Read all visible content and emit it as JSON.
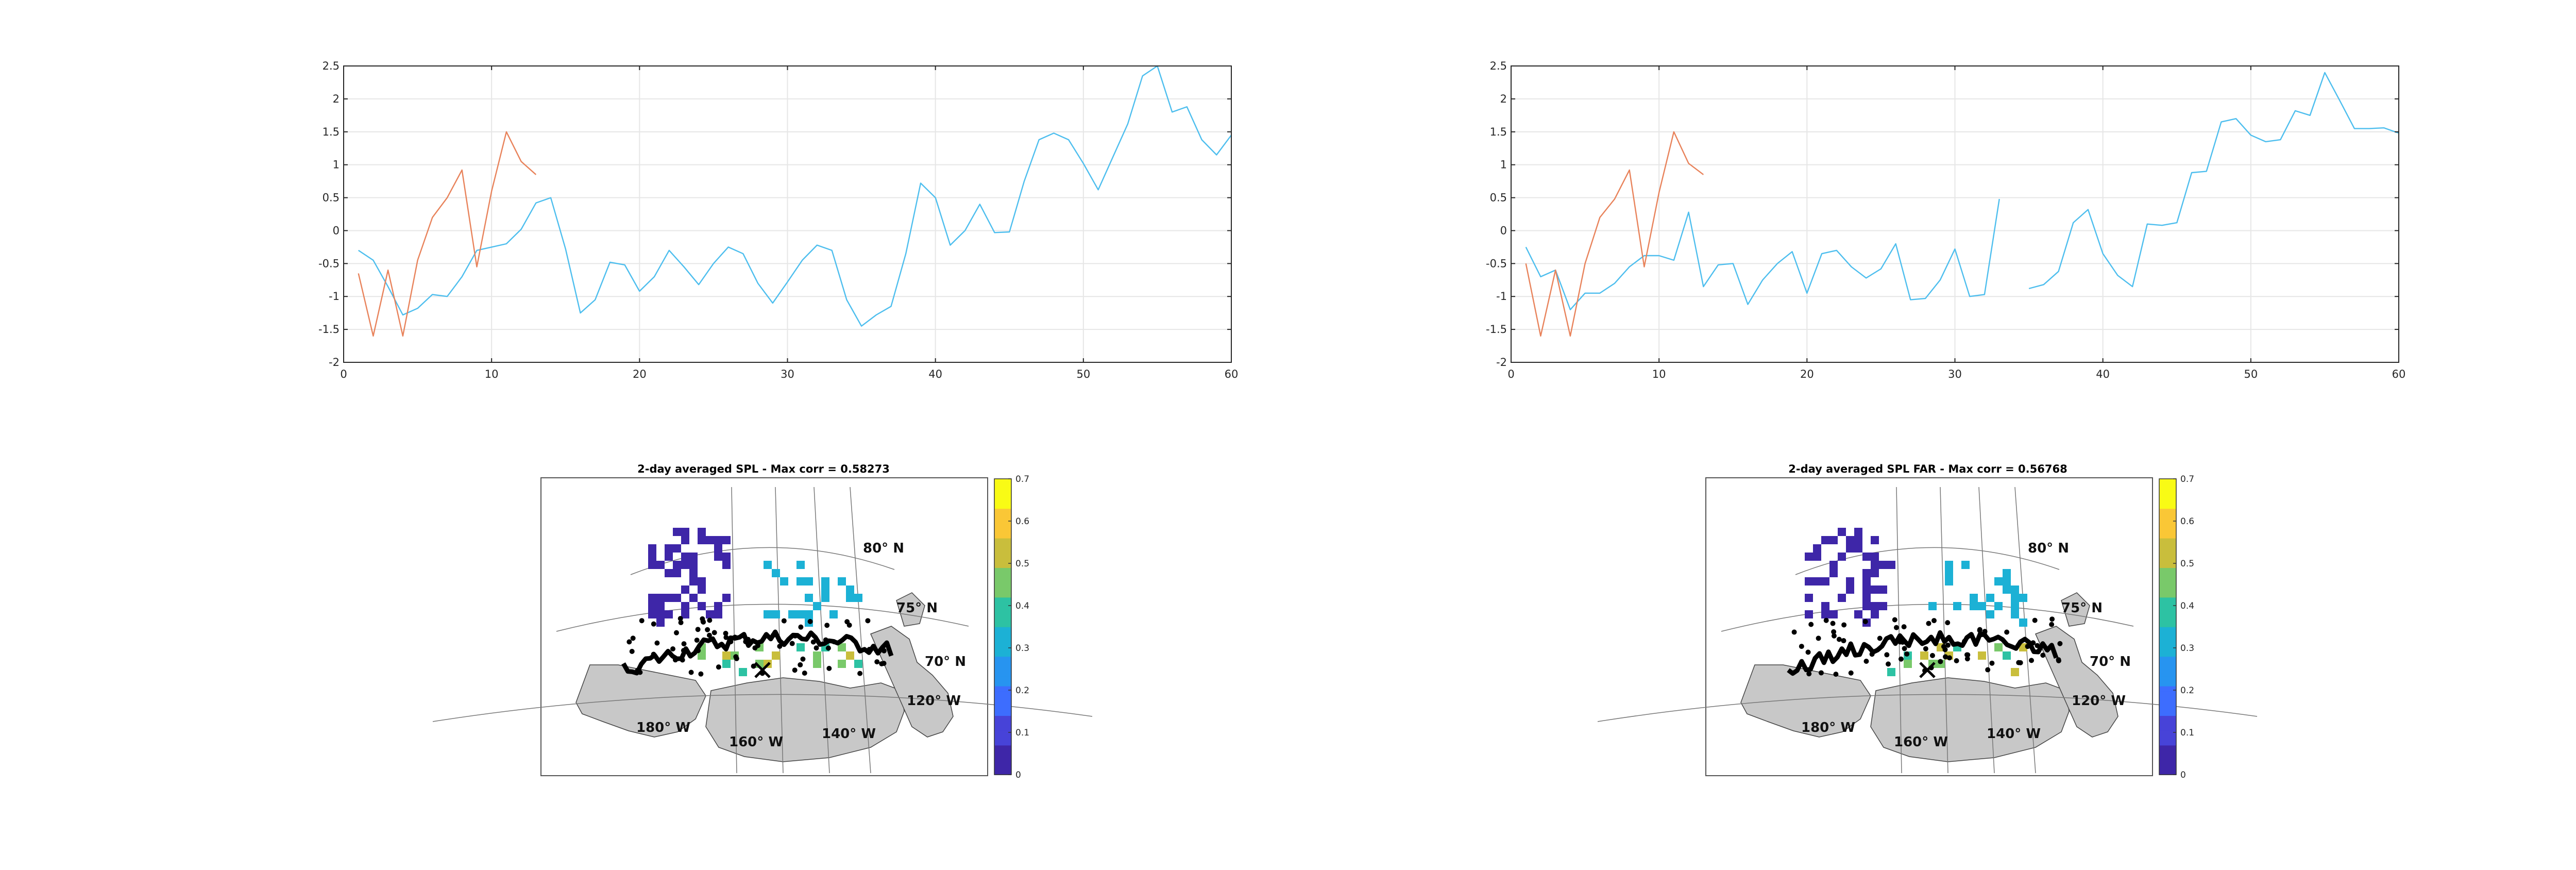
{
  "colors": {
    "series_blue": "#4DBEEE",
    "series_orange": "#E8825A",
    "grid": "#E6E6E6",
    "axis": "#262626",
    "land": "#C8C8C8",
    "coast": "#000000",
    "colormap": [
      "#3E26A8",
      "#4743D8",
      "#3D6DFE",
      "#2794F0",
      "#1CB1D5",
      "#2DC2A3",
      "#79C96A",
      "#C9BE3C",
      "#FAC736",
      "#F9FB15"
    ]
  },
  "chart_data": [
    {
      "type": "line",
      "title": "",
      "xlabel": "",
      "ylabel": "",
      "xlim": [
        0,
        60
      ],
      "ylim": [
        -2,
        2.5
      ],
      "xticks": [
        "0",
        "10",
        "20",
        "30",
        "40",
        "50",
        "60"
      ],
      "yticks": [
        "-2",
        "-1.5",
        "-1",
        "-0.5",
        "0",
        "0.5",
        "1",
        "1.5",
        "2",
        "2.5"
      ],
      "grid": true,
      "series": [
        {
          "color": "#4DBEEE",
          "x": [
            1,
            2,
            3,
            4,
            5,
            6,
            7,
            8,
            9,
            10,
            11,
            12,
            13,
            14,
            15,
            16,
            17,
            18,
            19,
            20,
            21,
            22,
            23,
            24,
            25,
            26,
            27,
            28,
            29,
            30,
            31,
            32,
            33,
            34,
            35,
            36,
            37,
            38,
            39,
            40,
            41,
            42,
            43,
            44,
            45,
            46,
            47,
            48,
            49,
            50,
            51,
            52,
            53,
            54,
            55,
            56,
            57,
            58,
            59,
            60
          ],
          "y": [
            -0.3,
            -0.45,
            -0.85,
            -1.28,
            -1.18,
            -0.97,
            -1.0,
            -0.7,
            -0.3,
            -0.25,
            -0.2,
            0.02,
            0.42,
            0.5,
            -0.28,
            -1.25,
            -1.05,
            -0.48,
            -0.52,
            -0.92,
            -0.7,
            -0.3,
            -0.55,
            -0.82,
            -0.5,
            -0.25,
            -0.35,
            -0.8,
            -1.1,
            -0.78,
            -0.45,
            -0.22,
            -0.3,
            -1.05,
            -1.45,
            -1.28,
            -1.15,
            -0.35,
            0.72,
            0.5,
            -0.22,
            0.0,
            0.4,
            -0.03,
            -0.02,
            0.75,
            1.38,
            1.48,
            1.38,
            1.02,
            0.62,
            1.12,
            1.62,
            2.35,
            2.5,
            1.8,
            1.88,
            1.38,
            1.15,
            1.45
          ]
        },
        {
          "color": "#E8825A",
          "x": [
            1,
            2,
            3,
            4,
            5,
            6,
            7,
            8,
            9,
            10,
            11,
            12,
            13
          ],
          "y": [
            -0.65,
            -1.6,
            -0.6,
            -1.6,
            -0.45,
            0.2,
            0.5,
            0.92,
            -0.55,
            0.6,
            1.5,
            1.05,
            0.85
          ]
        }
      ]
    },
    {
      "type": "line",
      "title": "",
      "xlabel": "",
      "ylabel": "",
      "xlim": [
        0,
        60
      ],
      "ylim": [
        -2,
        2.5
      ],
      "xticks": [
        "0",
        "10",
        "20",
        "30",
        "40",
        "50",
        "60"
      ],
      "yticks": [
        "-2",
        "-1.5",
        "-1",
        "-0.5",
        "0",
        "0.5",
        "1",
        "1.5",
        "2",
        "2.5"
      ],
      "grid": true,
      "series": [
        {
          "color": "#4DBEEE",
          "x": [
            1,
            2,
            3,
            4,
            5,
            6,
            7,
            8,
            9,
            10,
            11,
            12,
            13,
            14,
            15,
            16,
            17,
            18,
            19,
            20,
            21,
            22,
            23,
            24,
            25,
            26,
            27,
            28,
            29,
            30,
            31,
            32,
            33,
            34,
            35,
            36,
            37,
            38,
            39,
            40,
            41,
            42,
            43,
            44,
            45,
            46,
            47,
            48,
            49,
            50,
            51,
            52,
            53,
            54,
            55,
            56,
            57,
            58,
            59,
            60
          ],
          "y": [
            -0.25,
            -0.7,
            -0.6,
            -1.2,
            -0.95,
            -0.95,
            -0.8,
            -0.55,
            -0.38,
            -0.38,
            -0.45,
            0.28,
            -0.85,
            -0.52,
            -0.5,
            -1.12,
            -0.75,
            -0.5,
            -0.32,
            -0.95,
            -0.35,
            -0.3,
            -0.55,
            -0.72,
            -0.58,
            -0.2,
            -1.05,
            -1.03,
            -0.75,
            -0.28,
            -1.0,
            -0.97,
            0.48,
            null,
            -0.88,
            -0.82,
            -0.62,
            0.12,
            0.32,
            -0.35,
            -0.68,
            -0.85,
            0.1,
            0.08,
            0.12,
            0.88,
            0.9,
            1.65,
            1.7,
            1.45,
            1.35,
            1.38,
            1.82,
            1.75,
            2.4,
            1.98,
            1.55,
            1.55,
            1.56,
            1.48
          ]
        },
        {
          "color": "#E8825A",
          "x": [
            1,
            2,
            3,
            4,
            5,
            6,
            7,
            8,
            9,
            10,
            11,
            12,
            13
          ],
          "y": [
            -0.5,
            -1.6,
            -0.6,
            -1.6,
            -0.5,
            0.2,
            0.48,
            0.92,
            -0.55,
            0.58,
            1.5,
            1.02,
            0.85
          ]
        }
      ]
    },
    {
      "type": "heatmap",
      "title": "2-day averaged SPL - Max corr = 0.58273",
      "colorbar": {
        "min": 0,
        "max": 0.7,
        "ticks": [
          "0",
          "0.1",
          "0.2",
          "0.3",
          "0.4",
          "0.5",
          "0.6",
          "0.7"
        ]
      },
      "lat_labels": [
        "80° N",
        "75° N",
        "70° N"
      ],
      "lon_labels": [
        "180° W",
        "160° W",
        "140° W",
        "120° W"
      ]
    },
    {
      "type": "heatmap",
      "title": "2-day averaged SPL FAR - Max corr = 0.56768",
      "colorbar": {
        "min": 0,
        "max": 0.7,
        "ticks": [
          "0",
          "0.1",
          "0.2",
          "0.3",
          "0.4",
          "0.5",
          "0.6",
          "0.7"
        ]
      },
      "lat_labels": [
        "80° N",
        "75° N",
        "70° N"
      ],
      "lon_labels": [
        "180° W",
        "160° W",
        "140° W",
        "120° W"
      ]
    }
  ]
}
